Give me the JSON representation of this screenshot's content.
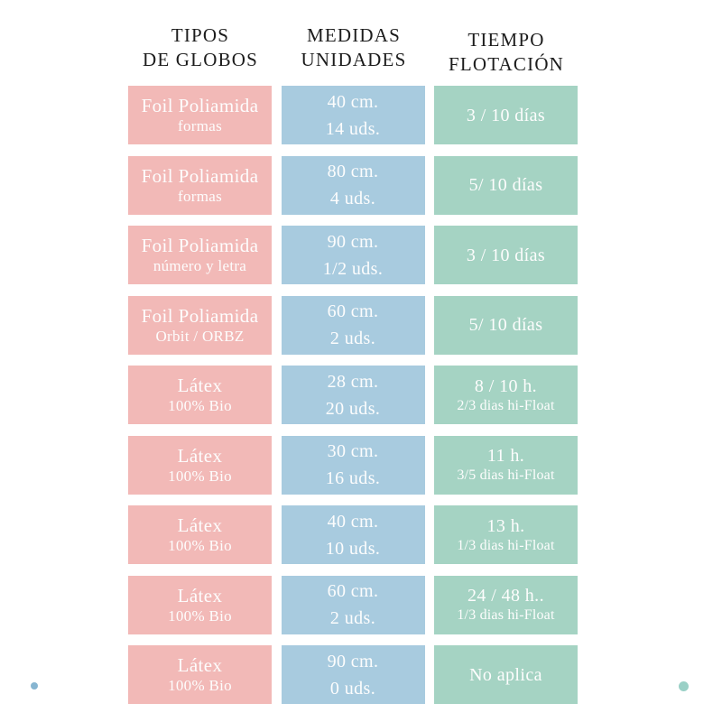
{
  "colors": {
    "background": "#ffffff",
    "header-text": "#1c1c1c",
    "cell-text": "#fdfdfd",
    "col-tipos": "#f2b9b7",
    "col-medidas": "#a8cbdf",
    "col-tiempo": "#a5d3c3",
    "dot-blue": "#86b5d1",
    "dot-teal": "#9ad0c6"
  },
  "chart_data": {
    "type": "table",
    "column_headers": [
      {
        "line1": "TIPOS",
        "line2": "DE GLOBOS"
      },
      {
        "line1": "MEDIDAS",
        "line2": "UNIDADES"
      },
      {
        "line1": "TIEMPO",
        "line2": "FLOTACIÓN"
      }
    ],
    "rows": [
      {
        "tipo": "Foil Poliamida",
        "tipo_sub": "formas",
        "medida": "40 cm.",
        "unidades": "14 uds.",
        "tiempo": "3 / 10 días",
        "tiempo_sub": ""
      },
      {
        "tipo": "Foil Poliamida",
        "tipo_sub": "formas",
        "medida": "80 cm.",
        "unidades": "4 uds.",
        "tiempo": "5/ 10 días",
        "tiempo_sub": ""
      },
      {
        "tipo": "Foil Poliamida",
        "tipo_sub": "número y letra",
        "medida": "90 cm.",
        "unidades": "1/2 uds.",
        "tiempo": "3 / 10 días",
        "tiempo_sub": ""
      },
      {
        "tipo": "Foil Poliamida",
        "tipo_sub": "Orbit / ORBZ",
        "medida": "60 cm.",
        "unidades": "2 uds.",
        "tiempo": "5/ 10 días",
        "tiempo_sub": ""
      },
      {
        "tipo": "Látex",
        "tipo_sub": "100% Bio",
        "medida": "28 cm.",
        "unidades": "20 uds.",
        "tiempo": "8 / 10 h.",
        "tiempo_sub": "2/3 dias hi-Float"
      },
      {
        "tipo": "Látex",
        "tipo_sub": "100% Bio",
        "medida": "30 cm.",
        "unidades": "16 uds.",
        "tiempo": "11 h.",
        "tiempo_sub": "3/5 dias hi-Float"
      },
      {
        "tipo": "Látex",
        "tipo_sub": "100% Bio",
        "medida": "40 cm.",
        "unidades": "10 uds.",
        "tiempo": "13 h.",
        "tiempo_sub": "1/3 dias hi-Float"
      },
      {
        "tipo": "Látex",
        "tipo_sub": "100% Bio",
        "medida": "60 cm.",
        "unidades": "2 uds.",
        "tiempo": "24 / 48 h..",
        "tiempo_sub": "1/3 dias hi-Float"
      },
      {
        "tipo": "Látex",
        "tipo_sub": "100% Bio",
        "medida": "90 cm.",
        "unidades": "0 uds.",
        "tiempo": "No aplica",
        "tiempo_sub": ""
      }
    ]
  }
}
